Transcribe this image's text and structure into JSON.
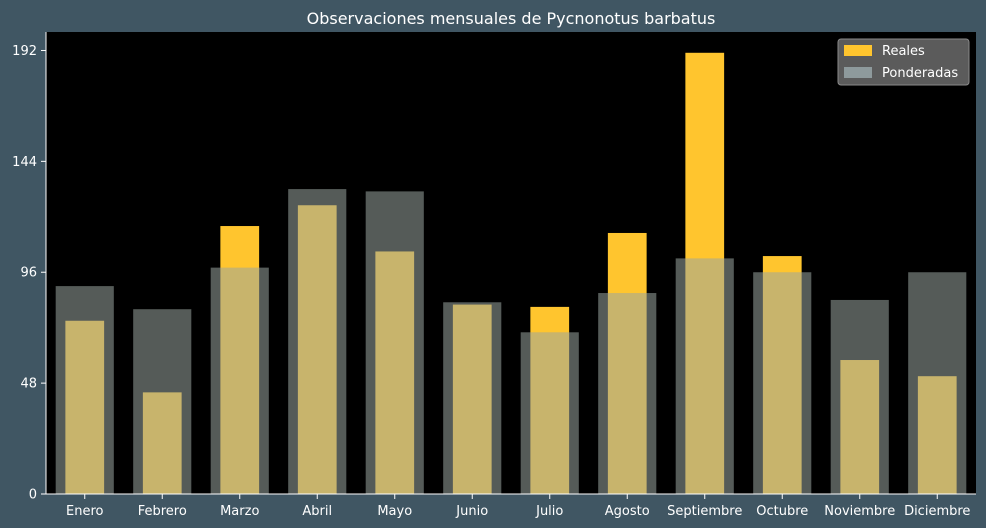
{
  "chart_data": {
    "type": "bar",
    "title": "Observaciones mensuales de Pycnonotus barbatus",
    "xlabel": "",
    "ylabel": "",
    "categories": [
      "Enero",
      "Febrero",
      "Marzo",
      "Abril",
      "Mayo",
      "Junio",
      "Julio",
      "Agosto",
      "Septiembre",
      "Octubre",
      "Noviembre",
      "Diciembre"
    ],
    "series": [
      {
        "name": "Reales",
        "color": "#ffc52e",
        "values": [
          75,
          44,
          116,
          125,
          105,
          82,
          81,
          113,
          191,
          103,
          58,
          51
        ]
      },
      {
        "name": "Ponderadas",
        "color": "#9aa5a0",
        "opacity": 0.55,
        "values": [
          90,
          80,
          98,
          132,
          131,
          83,
          70,
          87,
          102,
          96,
          84,
          96
        ]
      }
    ],
    "ylim": [
      0,
      200
    ],
    "yticks": [
      0,
      48,
      96,
      144,
      192
    ],
    "grid": false,
    "legend_position": "top-right",
    "background": "#000000",
    "figure_background": "#405663"
  }
}
